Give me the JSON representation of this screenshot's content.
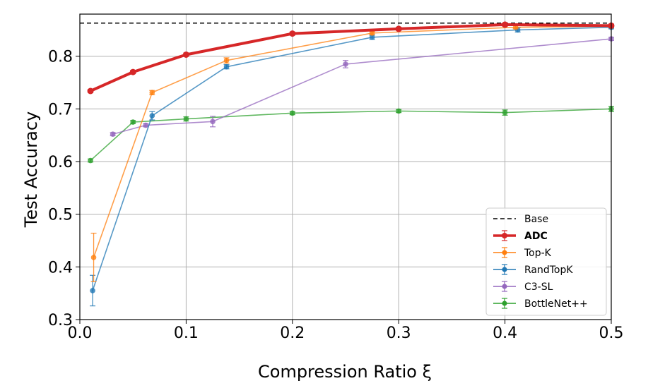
{
  "chart_data": {
    "type": "line",
    "title": "",
    "xlabel": "Compression Ratio ξ",
    "ylabel": "Test Accuracy",
    "xlim": [
      0.0,
      0.5
    ],
    "ylim": [
      0.3,
      0.88
    ],
    "xticks": [
      0.0,
      0.1,
      0.2,
      0.3,
      0.4,
      0.5
    ],
    "xtick_labels": [
      "0.0",
      "0.1",
      "0.2",
      "0.3",
      "0.4",
      "0.5"
    ],
    "yticks": [
      0.3,
      0.4,
      0.5,
      0.6,
      0.7,
      0.8
    ],
    "ytick_labels": [
      "0.3",
      "0.4",
      "0.5",
      "0.6",
      "0.7",
      "0.8"
    ],
    "grid": true,
    "legend_position": "lower-right",
    "baseline": {
      "name": "Base",
      "value": 0.863,
      "color": "#000000",
      "style": "dashed"
    },
    "series": [
      {
        "name": "ADC",
        "color": "#d62728",
        "bold": true,
        "x": [
          0.01,
          0.05,
          0.1,
          0.2,
          0.3,
          0.4,
          0.5
        ],
        "y": [
          0.734,
          0.77,
          0.803,
          0.843,
          0.852,
          0.86,
          0.858
        ],
        "err": [
          0.003,
          0.003,
          0.003,
          0.003,
          0.003,
          0.003,
          0.003
        ]
      },
      {
        "name": "Top-K",
        "color": "#ff7f0e",
        "bold": false,
        "x": [
          0.013,
          0.068,
          0.138,
          0.275,
          0.41,
          0.5
        ],
        "y": [
          0.418,
          0.731,
          0.792,
          0.844,
          0.855,
          0.857
        ],
        "err": [
          0.046,
          0.004,
          0.005,
          0.003,
          0.003,
          0.003
        ]
      },
      {
        "name": "RandTopK",
        "color": "#1f77b4",
        "bold": false,
        "x": [
          0.012,
          0.068,
          0.138,
          0.275,
          0.412,
          0.5
        ],
        "y": [
          0.355,
          0.687,
          0.78,
          0.836,
          0.85,
          0.855
        ],
        "err": [
          0.029,
          0.008,
          0.004,
          0.004,
          0.004,
          0.003
        ]
      },
      {
        "name": "C3-SL",
        "color": "#9467bd",
        "bold": false,
        "x": [
          0.031,
          0.062,
          0.125,
          0.25,
          0.5
        ],
        "y": [
          0.652,
          0.669,
          0.676,
          0.785,
          0.833
        ],
        "err": [
          0.003,
          0.003,
          0.01,
          0.007,
          0.003
        ]
      },
      {
        "name": "BottleNet++",
        "color": "#2ca02c",
        "bold": false,
        "x": [
          0.01,
          0.05,
          0.1,
          0.2,
          0.3,
          0.4,
          0.5
        ],
        "y": [
          0.602,
          0.675,
          0.681,
          0.692,
          0.696,
          0.693,
          0.7
        ],
        "err": [
          0.003,
          0.003,
          0.004,
          0.003,
          0.003,
          0.005,
          0.005
        ]
      }
    ]
  }
}
